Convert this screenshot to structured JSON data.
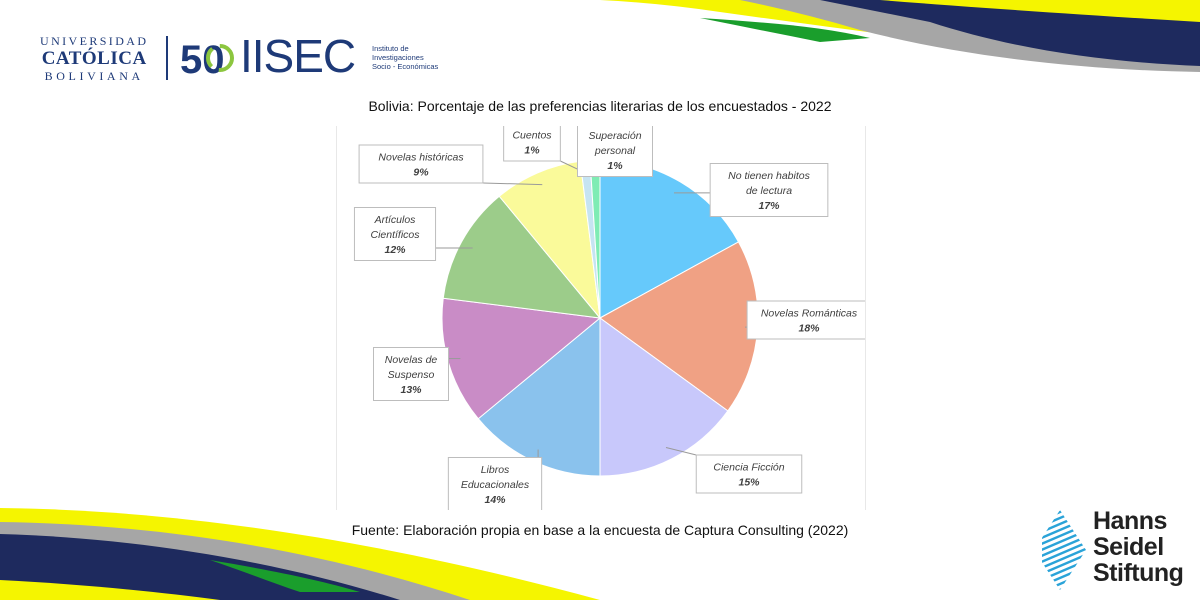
{
  "header": {
    "university": {
      "line1": "UNIVERSIDAD",
      "line2": "CATÓLICA",
      "line3": "BOLIVIANA"
    },
    "institute": {
      "anniversary": "50",
      "name": "IISEC",
      "desc_line1": "Instituto de",
      "desc_line2": "Investigaciones",
      "desc_line3": "Socio - Económicas"
    }
  },
  "chart_title": "Bolivia: Porcentaje de las preferencias literarias de los encuestados - 2022",
  "source": "Fuente: Elaboración propia en base a la encuesta de Captura Consulting (2022)",
  "footer_logo": {
    "line1": "Hanns",
    "line2": "Seidel",
    "line3": "Stiftung"
  },
  "chart_data": {
    "type": "pie",
    "title": "Bolivia: Porcentaje de las preferencias literarias de los encuestados - 2022",
    "start_angle_deg": 0,
    "direction": "clockwise",
    "slices": [
      {
        "label_lines": [
          "No tienen habitos",
          "de lectura"
        ],
        "value": 17,
        "value_label": "17%",
        "color": "#66c9fb"
      },
      {
        "label_lines": [
          "Novelas Románticas"
        ],
        "value": 18,
        "value_label": "18%",
        "color": "#f0a184"
      },
      {
        "label_lines": [
          "Ciencia Ficción"
        ],
        "value": 15,
        "value_label": "15%",
        "color": "#c8c8fb"
      },
      {
        "label_lines": [
          "Libros",
          "Educacionales"
        ],
        "value": 14,
        "value_label": "14%",
        "color": "#8ac2ed"
      },
      {
        "label_lines": [
          "Novelas de",
          "Suspenso"
        ],
        "value": 13,
        "value_label": "13%",
        "color": "#c98cc6"
      },
      {
        "label_lines": [
          "Artículos",
          "Científicos"
        ],
        "value": 12,
        "value_label": "12%",
        "color": "#9ccc8a"
      },
      {
        "label_lines": [
          "Novelas históricas"
        ],
        "value": 9,
        "value_label": "9%",
        "color": "#fafa9a"
      },
      {
        "label_lines": [
          "Cuentos"
        ],
        "value": 1,
        "value_label": "1%",
        "color": "#c6e4f2"
      },
      {
        "label_lines": [
          "Superación",
          "personal"
        ],
        "value": 1,
        "value_label": "1%",
        "color": "#7fecb4"
      }
    ]
  }
}
